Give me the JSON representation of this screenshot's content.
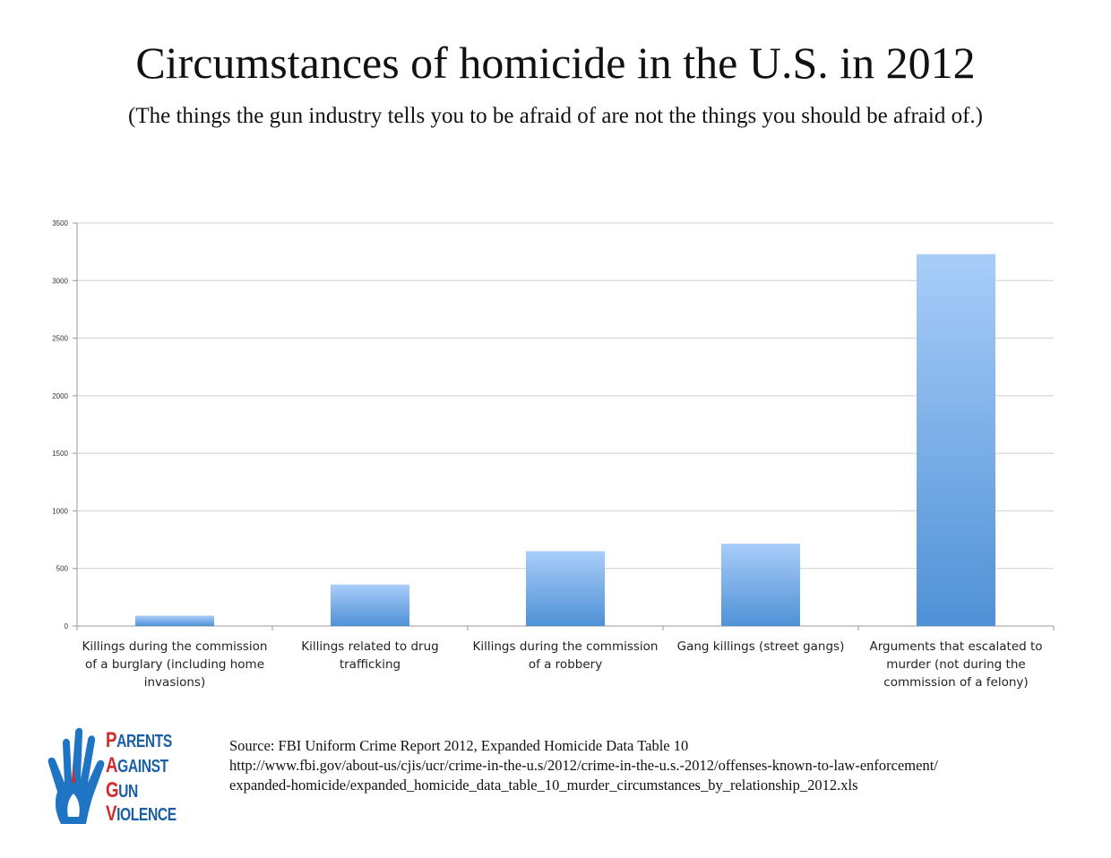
{
  "title": "Circumstances of homicide in the U.S. in 2012",
  "subtitle": "(The things the gun industry tells you to be afraid of are not the things you should be afraid of.)",
  "chart_data": {
    "type": "bar",
    "title": "Circumstances of homicide in the U.S. in 2012",
    "categories": [
      [
        "Killings during the commission",
        "of a burglary (including home",
        "invasions)"
      ],
      [
        "Killings related to drug",
        "trafficking"
      ],
      [
        "Killings during the commission",
        "of a robbery"
      ],
      [
        "Gang killings (street gangs)"
      ],
      [
        "Arguments that escalated to",
        "murder (not during the",
        "commission of a felony)"
      ]
    ],
    "values": [
      90,
      360,
      650,
      715,
      3230
    ],
    "ylim": [
      0,
      3500
    ],
    "yticks": [
      "0",
      "500",
      "1000",
      "1500",
      "2000",
      "2500",
      "3000",
      "3500"
    ],
    "grid": true,
    "legend": "none",
    "colors": {
      "bar_top": "#a9cdf9",
      "bar_bottom": "#4f91d6",
      "grid": "#cfcfcf",
      "axis": "#9a9a9a"
    }
  },
  "logo": {
    "words": [
      {
        "first": "P",
        "rest": "ARENTS"
      },
      {
        "first": "A",
        "rest": "GAINST"
      },
      {
        "first": "G",
        "rest": "UN"
      },
      {
        "first": "V",
        "rest": "IOLENCE"
      }
    ],
    "icon": "raised-hand-icon",
    "colors": {
      "hand": "#1f74c4",
      "accent": "#d32a2a"
    }
  },
  "source": {
    "line1": "Source: FBI Uniform Crime Report 2012, Expanded Homicide Data Table 10",
    "line2": "http://www.fbi.gov/about-us/cjis/ucr/crime-in-the-u.s/2012/crime-in-the-u.s.-2012/offenses-known-to-law-enforcement/",
    "line3": "expanded-homicide/expanded_homicide_data_table_10_murder_circumstances_by_relationship_2012.xls"
  }
}
